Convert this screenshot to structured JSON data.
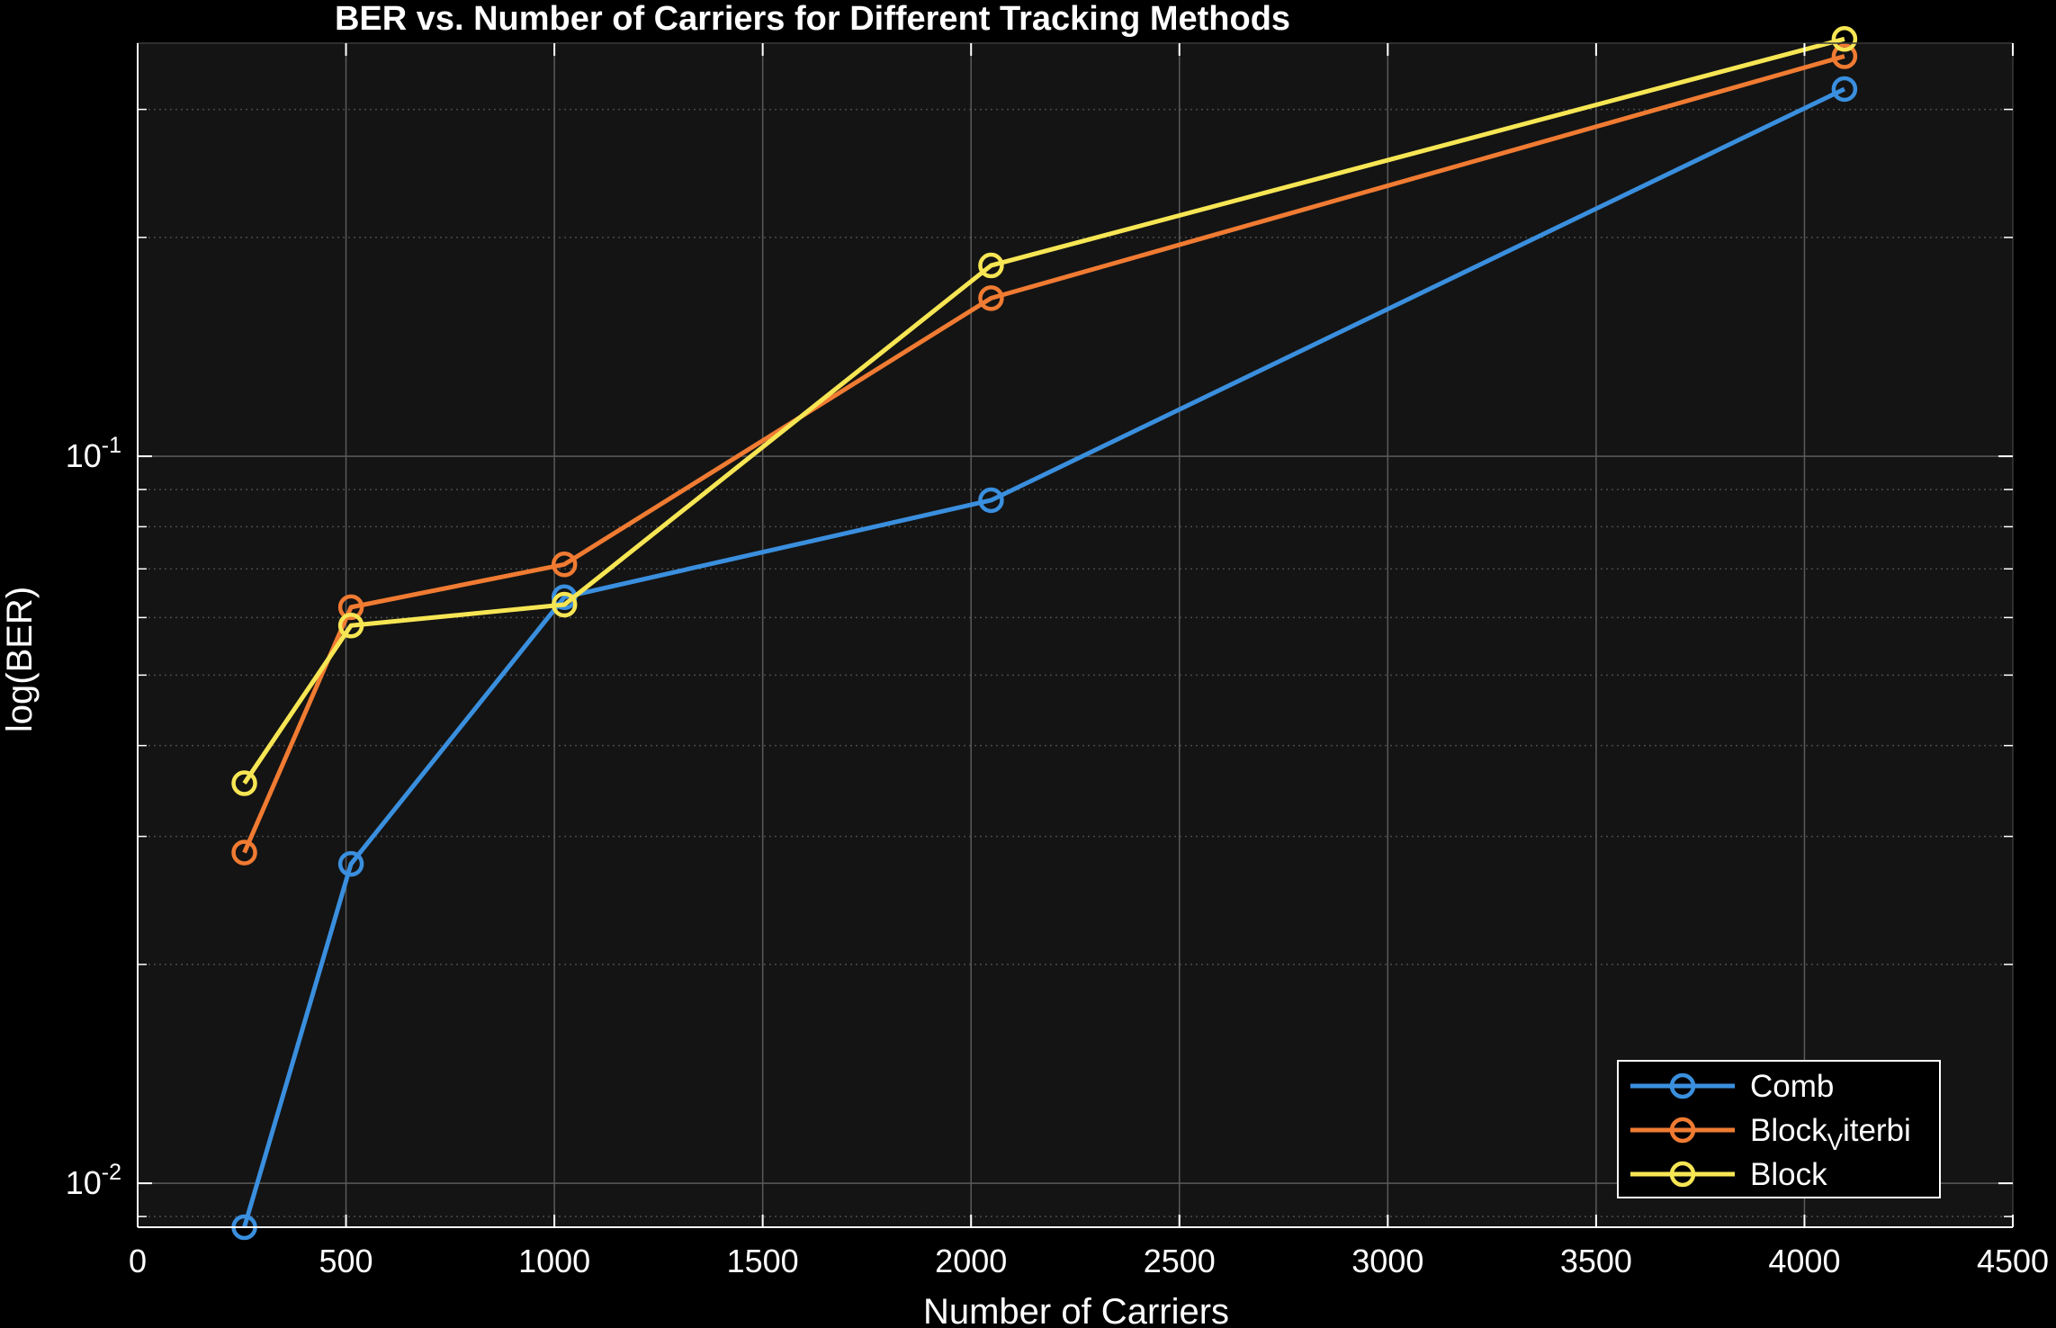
{
  "chart_data": {
    "type": "line",
    "title": "BER vs. Number of Carriers for Different Tracking Methods",
    "xlabel": "Number of Carriers",
    "ylabel": "log(BER)",
    "x_scale": "linear",
    "y_scale": "log",
    "xlim": [
      0,
      4500
    ],
    "ylim": [
      0.0087,
      0.37
    ],
    "x_ticks": [
      0,
      500,
      1000,
      1500,
      2000,
      2500,
      3000,
      3500,
      4000,
      4500
    ],
    "y_major_ticks": [
      {
        "value": 0.01,
        "base": "10",
        "exponent": "-2"
      },
      {
        "value": 0.1,
        "base": "10",
        "exponent": "-1"
      }
    ],
    "grid": true,
    "minor_grid": true,
    "legend_position": "bottom-right",
    "x": [
      256,
      512,
      1024,
      2048,
      4096
    ],
    "series": [
      {
        "name": "Comb",
        "legend_main": "Comb",
        "legend_sub": "",
        "color": "#3a8fde",
        "values": [
          0.0087,
          0.0275,
          0.064,
          0.087,
          0.32
        ]
      },
      {
        "name": "Block_Viterbi",
        "legend_main": "Block",
        "legend_sub": "V",
        "legend_tail": "iterbi",
        "color": "#f07b32",
        "values": [
          0.0285,
          0.062,
          0.071,
          0.165,
          0.355
        ]
      },
      {
        "name": "Block",
        "legend_main": "Block",
        "legend_sub": "",
        "color": "#f7e654",
        "values": [
          0.0355,
          0.0585,
          0.0625,
          0.183,
          0.375
        ]
      }
    ]
  },
  "colors": {
    "figure_bg": "#000000",
    "axes_bg": "#141414",
    "grid": "#5a5a5a",
    "minor_grid": "#4a4a4a",
    "text": "#ffffff"
  }
}
